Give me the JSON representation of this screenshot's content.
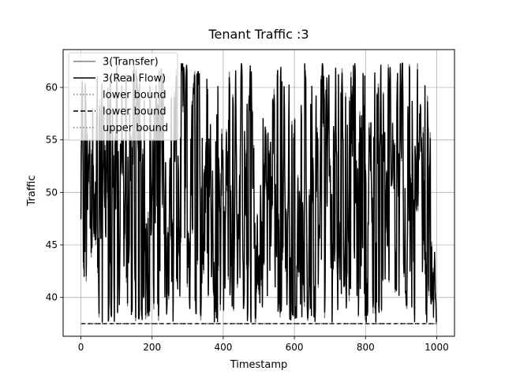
{
  "chart_data": {
    "type": "line",
    "title": "Tenant Traffic :3",
    "xlabel": "Timestamp",
    "ylabel": "Traffic",
    "xlim": [
      -50,
      1050
    ],
    "ylim": [
      36.3,
      63.6
    ],
    "xticks": [
      0,
      200,
      400,
      600,
      800,
      1000
    ],
    "yticks": [
      40,
      45,
      50,
      55,
      60
    ],
    "grid": true,
    "legend_position": "top-left",
    "series": [
      {
        "name": "3(Transfer)",
        "color": "#808080",
        "style": "solid",
        "n_points": 1000,
        "range": [
          37.6,
          62.3
        ],
        "mean": 50
      },
      {
        "name": "3(Real Flow)",
        "color": "#000000",
        "style": "solid",
        "n_points": 1000,
        "range": [
          37.6,
          62.3
        ],
        "mean": 50
      },
      {
        "name": "lower bound",
        "color": "#808080",
        "style": "dotted",
        "x": [
          0,
          1000
        ],
        "y": [
          37.5,
          37.5
        ]
      },
      {
        "name": "lower bound",
        "color": "#000000",
        "style": "dashed",
        "x": [
          0,
          1000
        ],
        "y": [
          37.5,
          37.5
        ]
      },
      {
        "name": "upper bound",
        "color": "#808080",
        "style": "dotted",
        "x": [
          0,
          1000
        ],
        "y": [
          37.5,
          37.5
        ]
      }
    ]
  }
}
